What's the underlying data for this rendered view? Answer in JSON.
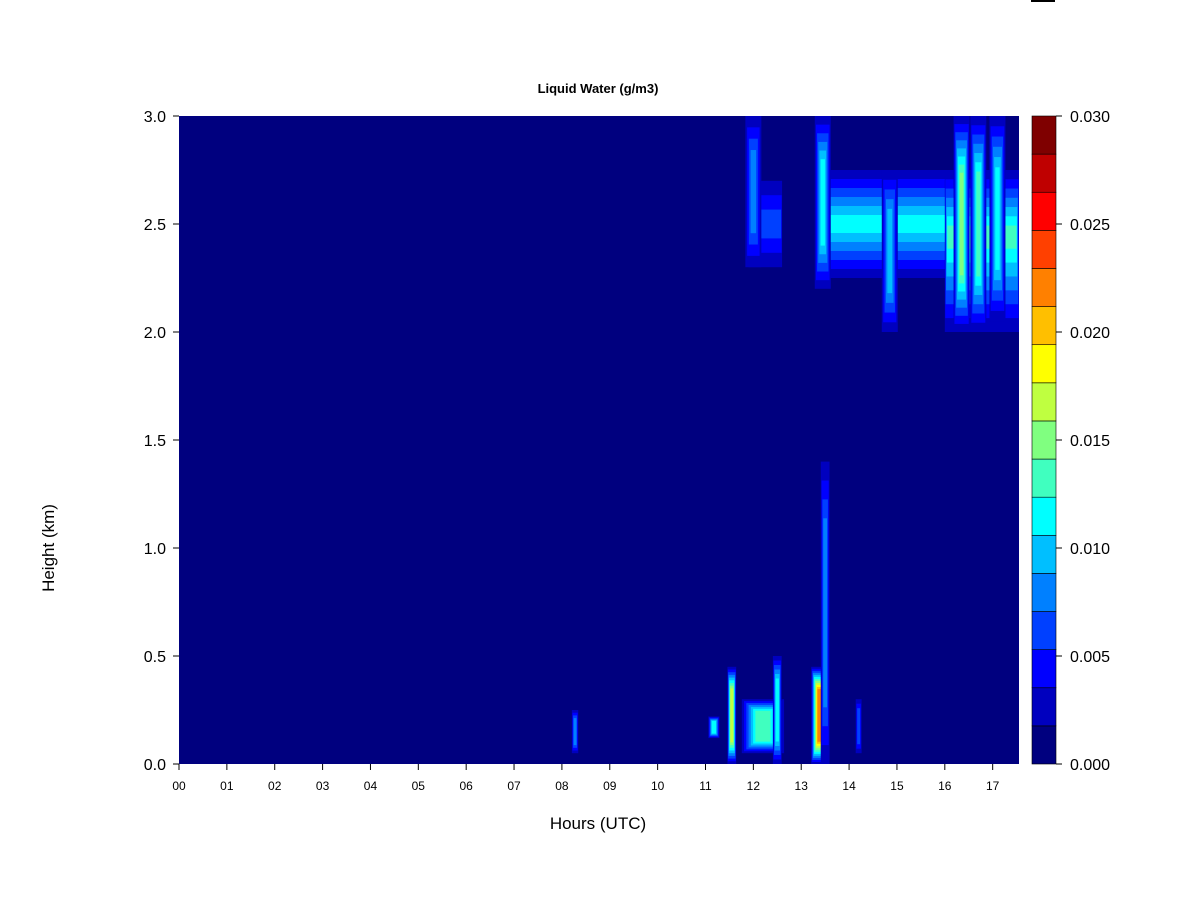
{
  "chart_data": {
    "type": "heatmap",
    "title": "Liquid Water (g/m3)",
    "xlabel": "Hours (UTC)",
    "ylabel": "Height (km)",
    "xlim": [
      0,
      17.55
    ],
    "ylim": [
      0,
      3.0
    ],
    "x_ticks": [
      "00",
      "01",
      "02",
      "03",
      "04",
      "05",
      "06",
      "07",
      "08",
      "09",
      "10",
      "11",
      "12",
      "13",
      "14",
      "15",
      "16",
      "17"
    ],
    "y_ticks": [
      "0.0",
      "0.5",
      "1.0",
      "1.5",
      "2.0",
      "2.5",
      "3.0"
    ],
    "colorbar": {
      "min": 0.0,
      "max": 0.03,
      "step": 0.002,
      "tick_labels": [
        "0.000",
        "0.005",
        "0.010",
        "0.015",
        "0.020",
        "0.025",
        "0.030"
      ],
      "colors": [
        "#00007F",
        "#0000BF",
        "#0000FF",
        "#0040FF",
        "#0080FF",
        "#00BFFF",
        "#00FFFF",
        "#40FFBF",
        "#80FF80",
        "#BFFF40",
        "#FFFF00",
        "#FFBF00",
        "#FF8000",
        "#FF4000",
        "#FF0000",
        "#BF0000",
        "#7F0000"
      ]
    },
    "background_value": 0.0,
    "features": [
      {
        "kind": "cloud_layer",
        "x": [
          13.3,
          17.55
        ],
        "y": [
          2.25,
          2.75
        ],
        "peak": 0.012,
        "center_y": 2.5
      },
      {
        "kind": "cloud_layer",
        "x": [
          11.9,
          12.6
        ],
        "y": [
          2.3,
          2.7
        ],
        "peak": 0.006,
        "center_y": 2.5
      },
      {
        "kind": "cloud_layer",
        "x": [
          16.0,
          17.55
        ],
        "y": [
          2.0,
          2.75
        ],
        "peak": 0.014,
        "center_y": 2.45
      },
      {
        "kind": "column",
        "x": 12.0,
        "y": [
          2.3,
          3.0
        ],
        "peak": 0.008
      },
      {
        "kind": "column",
        "x": 13.45,
        "y": [
          2.2,
          3.0
        ],
        "peak": 0.012
      },
      {
        "kind": "column",
        "x": 14.85,
        "y": [
          2.0,
          2.75
        ],
        "peak": 0.01
      },
      {
        "kind": "column",
        "x": 16.35,
        "y": [
          2.0,
          3.0
        ],
        "peak": 0.016
      },
      {
        "kind": "column",
        "x": 16.7,
        "y": [
          2.0,
          3.0
        ],
        "peak": 0.014
      },
      {
        "kind": "column",
        "x": 17.1,
        "y": [
          2.05,
          3.0
        ],
        "peak": 0.012
      },
      {
        "kind": "low_cloud",
        "x": [
          11.1,
          11.25
        ],
        "y": [
          0.12,
          0.22
        ],
        "peak": 0.012
      },
      {
        "kind": "low_cloud",
        "x": [
          11.5,
          11.6
        ],
        "y": [
          0.0,
          0.45
        ],
        "peak": 0.018
      },
      {
        "kind": "low_cloud",
        "x": [
          11.8,
          12.6
        ],
        "y": [
          0.05,
          0.3
        ],
        "peak": 0.014
      },
      {
        "kind": "low_cloud",
        "x": [
          12.45,
          12.55
        ],
        "y": [
          0.0,
          0.5
        ],
        "peak": 0.012
      },
      {
        "kind": "low_cloud",
        "x": [
          13.25,
          13.55
        ],
        "y": [
          0.0,
          0.45
        ],
        "peak": 0.024
      },
      {
        "kind": "low_cloud",
        "x": [
          13.45,
          13.55
        ],
        "y": [
          0.0,
          1.4
        ],
        "peak": 0.008
      },
      {
        "kind": "low_cloud",
        "x": [
          14.18,
          14.22
        ],
        "y": [
          0.05,
          0.3
        ],
        "peak": 0.006
      },
      {
        "kind": "low_cloud",
        "x": [
          8.25,
          8.3
        ],
        "y": [
          0.05,
          0.25
        ],
        "peak": 0.008
      }
    ]
  }
}
